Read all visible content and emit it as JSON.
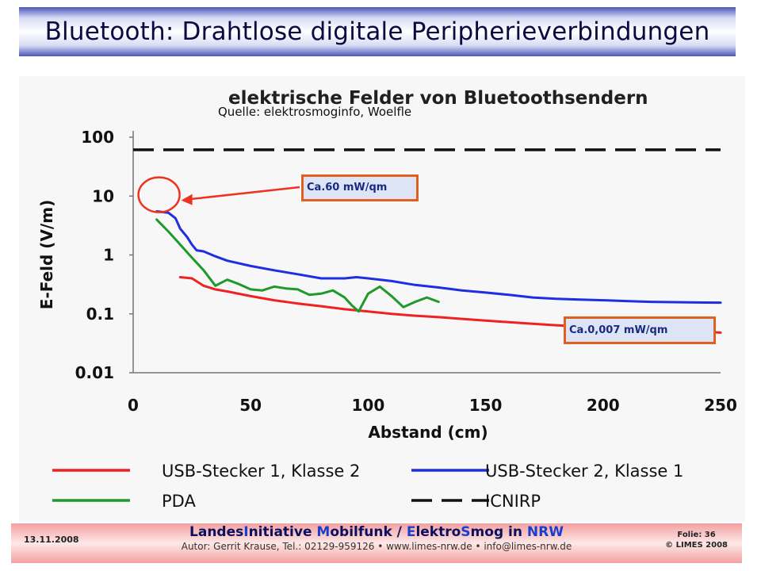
{
  "slide": {
    "title": "Bluetooth: Drahtlose digitale Peripherieverbindungen",
    "source": "Quelle: elektrosmoginfo, Woelfle",
    "callout_top": "Ca.60 mW/qm",
    "callout_bottom": "Ca.0,007 mW/qm"
  },
  "footer": {
    "date": "13.11.2008",
    "main_parts": [
      "Landes",
      "I",
      "nitiative ",
      "M",
      "obilfunk / ",
      "E",
      "lektro",
      "S",
      "mog in ",
      "NRW"
    ],
    "sub": "Autor: Gerrit Krause, Tel.: 02129-959126 • www.limes-nrw.de • info@limes-nrw.de",
    "slide_no": "Folie: 36",
    "copyright": "© LIMES 2008"
  },
  "chart_data": {
    "type": "line",
    "title": "elektrische Felder von Bluetoothsendern",
    "xlabel": "Abstand (cm)",
    "ylabel": "E-Feld (V/m)",
    "xlim": [
      0,
      250
    ],
    "ylim": [
      0.01,
      100
    ],
    "yscale": "log",
    "x_ticks": [
      "0",
      "50",
      "100",
      "150",
      "200",
      "250"
    ],
    "y_ticks": [
      "100",
      "10",
      "1",
      "0.1",
      "0.01"
    ],
    "grid": false,
    "legend_position": "bottom",
    "colors": {
      "usb1": "#ee2222",
      "usb2": "#1e2ee0",
      "pda": "#1e9a2a",
      "icnirp": "#111111",
      "circle": "#ee3322"
    },
    "series": [
      {
        "name": "USB-Stecker 1, Klasse 2",
        "style": "solid",
        "color": "#ee2222",
        "x": [
          20,
          25,
          30,
          35,
          40,
          50,
          60,
          70,
          80,
          90,
          100,
          110,
          120,
          130,
          140,
          150,
          160,
          170,
          180,
          190,
          200,
          210,
          220,
          230,
          240,
          250
        ],
        "y": [
          0.42,
          0.4,
          0.3,
          0.26,
          0.24,
          0.2,
          0.17,
          0.15,
          0.135,
          0.12,
          0.11,
          0.1,
          0.093,
          0.088,
          0.082,
          0.077,
          0.072,
          0.068,
          0.064,
          0.061,
          0.058,
          0.056,
          0.054,
          0.052,
          0.05,
          0.048
        ]
      },
      {
        "name": "USB-Stecker 2, Klasse 1",
        "style": "solid",
        "color": "#1e2ee0",
        "x": [
          10,
          15,
          18,
          20,
          23,
          25,
          27,
          30,
          35,
          40,
          50,
          60,
          70,
          80,
          90,
          95,
          100,
          110,
          120,
          130,
          140,
          150,
          160,
          170,
          180,
          190,
          200,
          210,
          220,
          230,
          240,
          250
        ],
        "y": [
          5.5,
          5.2,
          4.2,
          2.8,
          2.0,
          1.5,
          1.2,
          1.15,
          0.95,
          0.8,
          0.65,
          0.55,
          0.47,
          0.4,
          0.4,
          0.42,
          0.4,
          0.36,
          0.31,
          0.28,
          0.25,
          0.23,
          0.21,
          0.19,
          0.18,
          0.175,
          0.17,
          0.165,
          0.16,
          0.158,
          0.156,
          0.155
        ]
      },
      {
        "name": "PDA",
        "style": "solid",
        "color": "#1e9a2a",
        "x": [
          10,
          15,
          20,
          25,
          30,
          35,
          40,
          45,
          50,
          55,
          60,
          65,
          70,
          75,
          80,
          85,
          90,
          93,
          96,
          100,
          105,
          110,
          115,
          120,
          125,
          130
        ],
        "y": [
          4.0,
          2.5,
          1.5,
          0.9,
          0.55,
          0.3,
          0.38,
          0.32,
          0.26,
          0.25,
          0.29,
          0.27,
          0.26,
          0.21,
          0.22,
          0.25,
          0.19,
          0.14,
          0.11,
          0.22,
          0.29,
          0.2,
          0.13,
          0.16,
          0.19,
          0.16
        ]
      },
      {
        "name": "ICNIRP",
        "style": "dashed",
        "color": "#111111",
        "x": [
          0,
          250
        ],
        "y": [
          61,
          61
        ]
      }
    ]
  }
}
